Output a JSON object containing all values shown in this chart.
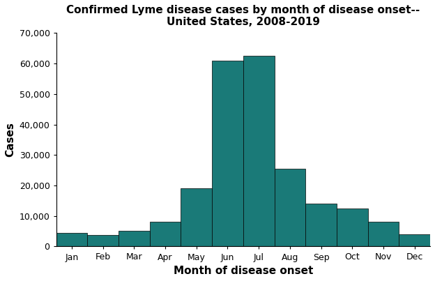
{
  "title": "Confirmed Lyme disease cases by month of disease onset--\nUnited States, 2008-2019",
  "xlabel": "Month of disease onset",
  "ylabel": "Cases",
  "months": [
    "Jan",
    "Feb",
    "Mar",
    "Apr",
    "May",
    "Jun",
    "Jul",
    "Aug",
    "Sep",
    "Oct",
    "Nov",
    "Dec"
  ],
  "values": [
    4500,
    3800,
    5200,
    8000,
    19000,
    61000,
    62500,
    25500,
    14000,
    12500,
    8000,
    4000
  ],
  "bar_color": "#1a7a78",
  "edge_color": "#000000",
  "ylim": [
    0,
    70000
  ],
  "yticks": [
    0,
    10000,
    20000,
    30000,
    40000,
    50000,
    60000,
    70000
  ],
  "title_fontsize": 11,
  "axis_label_fontsize": 11,
  "tick_fontsize": 9,
  "background_color": "#ffffff",
  "bar_width": 1.0,
  "linewidth": 0.5
}
